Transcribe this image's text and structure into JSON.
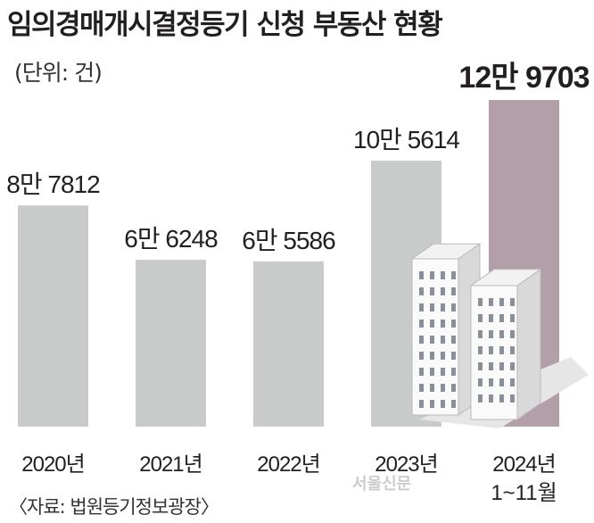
{
  "chart_data": {
    "type": "bar",
    "title": "임의경매개시결정등기 신청 부동산 현황",
    "unit": "(단위: 건)",
    "source": "〈자료: 법원등기정보광장〉",
    "watermark": "서울신문",
    "categories": [
      "2020년",
      "2021년",
      "2022년",
      "2023년",
      "2024년"
    ],
    "category_sublabels": [
      "",
      "",
      "",
      "",
      "1~11월"
    ],
    "values": [
      87812,
      66248,
      65586,
      105614,
      129703
    ],
    "data_labels": [
      "8만 7812",
      "6만 6248",
      "6만 5586",
      "10만 5614",
      "12만 9703"
    ],
    "colors": [
      "#c9caca",
      "#c9caca",
      "#c9caca",
      "#c9caca",
      "#b29fa8"
    ],
    "ylim": [
      0,
      129703
    ],
    "xlabel": "",
    "ylabel": ""
  }
}
